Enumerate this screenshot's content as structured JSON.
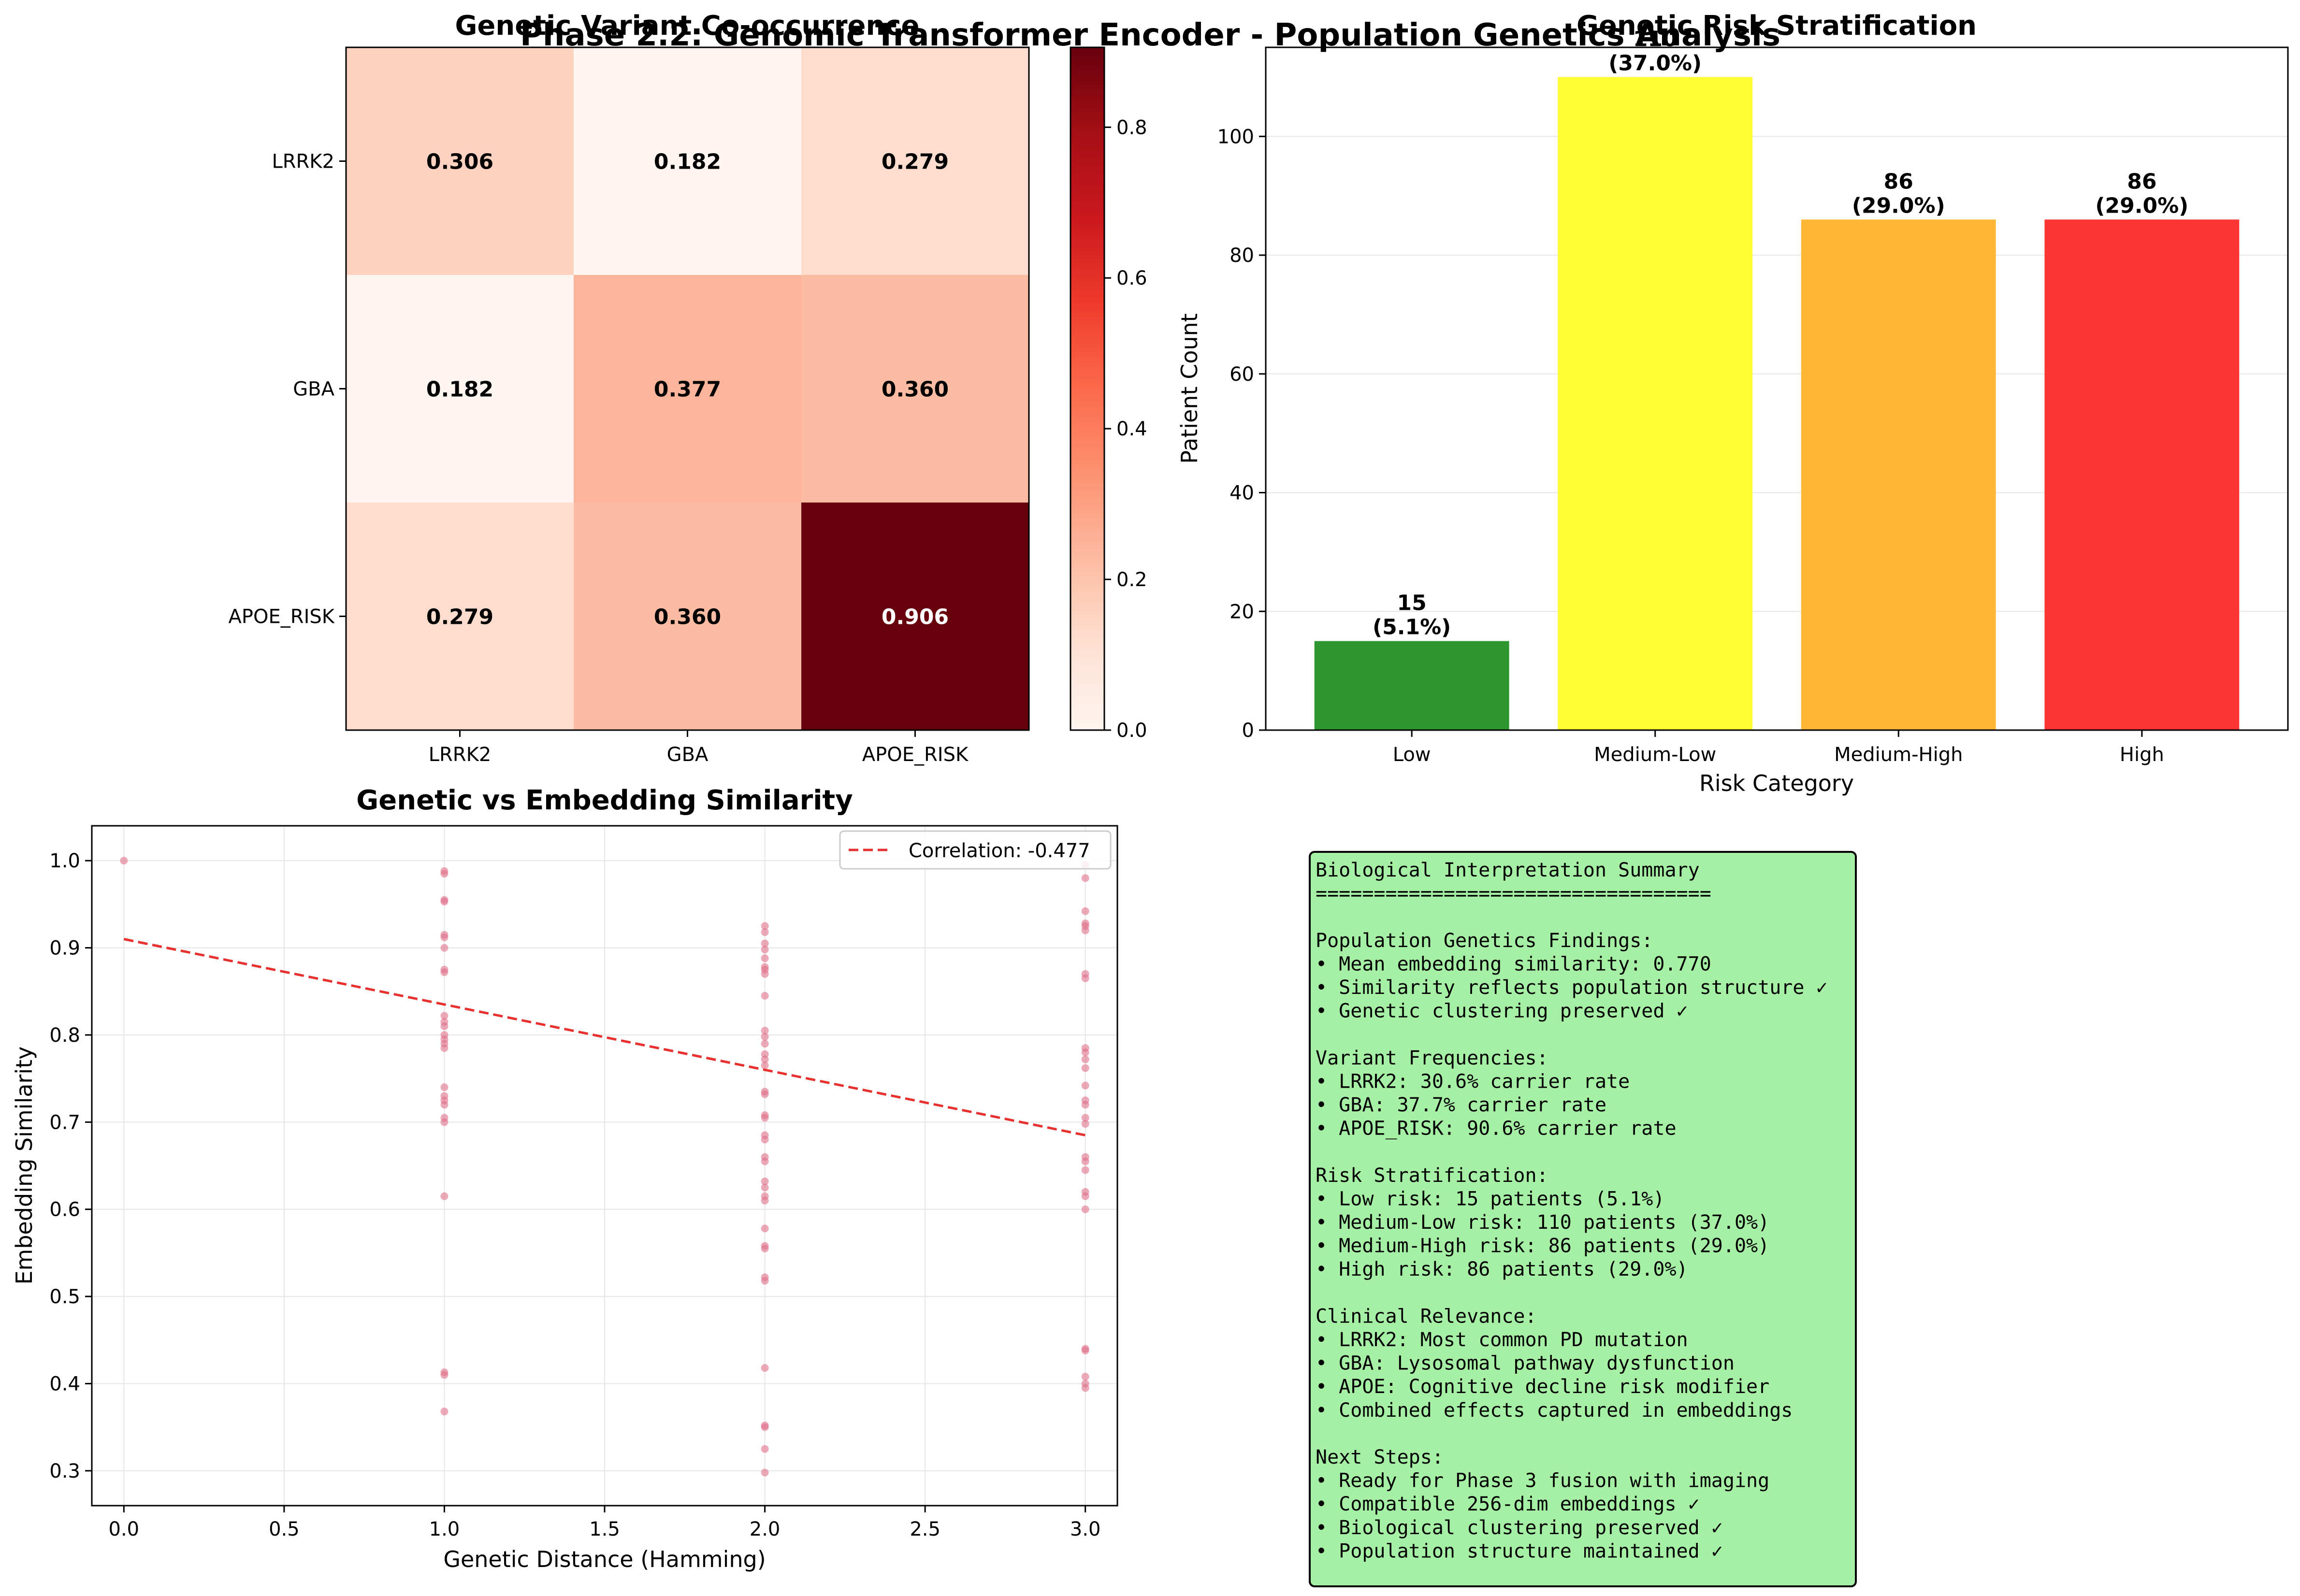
{
  "suptitle": "Phase 2.2: Genomic Transformer Encoder - Population Genetics Analysis",
  "chart_data": [
    {
      "type": "heatmap",
      "title": "Genetic Variant Co-occurrence",
      "xlabel": "",
      "ylabel": "",
      "x_labels": [
        "LRRK2",
        "GBA",
        "APOE_RISK"
      ],
      "y_labels": [
        "LRRK2",
        "GBA",
        "APOE_RISK"
      ],
      "values": [
        [
          0.306,
          0.182,
          0.279
        ],
        [
          0.182,
          0.377,
          0.36
        ],
        [
          0.279,
          0.36,
          0.906
        ]
      ],
      "value_labels": [
        [
          "0.306",
          "0.182",
          "0.279"
        ],
        [
          "0.182",
          "0.377",
          "0.360"
        ],
        [
          "0.279",
          "0.360",
          "0.906"
        ]
      ],
      "colorscale": "Reds",
      "colorbar": {
        "range": [
          0,
          0.9
        ],
        "ticks": [
          "0.0",
          "0.2",
          "0.4",
          "0.6",
          "0.8"
        ],
        "tick_values": [
          0,
          0.2,
          0.4,
          0.6,
          0.8
        ]
      }
    },
    {
      "type": "bar",
      "title": "Genetic Risk Stratification",
      "xlabel": "Risk Category",
      "ylabel": "Patient Count",
      "categories": [
        "Low",
        "Medium-Low",
        "Medium-High",
        "High"
      ],
      "values": [
        15,
        110,
        86,
        86
      ],
      "value_labels": [
        "15",
        "110",
        "86",
        "86"
      ],
      "percent_labels": [
        "(5.1%)",
        "(37.0%)",
        "(29.0%)",
        "(29.0%)"
      ],
      "colors": [
        "#2e962e",
        "#fefe34",
        "#fdb735",
        "#fe3535"
      ],
      "ylim": [
        0,
        115
      ],
      "yticks": [
        0,
        20,
        40,
        60,
        80,
        100
      ],
      "ytick_labels": [
        "0",
        "20",
        "40",
        "60",
        "80",
        "100"
      ],
      "grid": true
    },
    {
      "type": "scatter",
      "title": "Genetic vs Embedding Similarity",
      "xlabel": "Genetic Distance (Hamming)",
      "ylabel": "Embedding Similarity",
      "xlim": [
        -0.1,
        3.1
      ],
      "ylim": [
        0.26,
        1.04
      ],
      "xticks": [
        0,
        0.5,
        1,
        1.5,
        2,
        2.5,
        3
      ],
      "xtick_labels": [
        "0.0",
        "0.5",
        "1.0",
        "1.5",
        "2.0",
        "2.5",
        "3.0"
      ],
      "yticks": [
        0.3,
        0.4,
        0.5,
        0.6,
        0.7,
        0.8,
        0.9,
        1.0
      ],
      "ytick_labels": [
        "0.3",
        "0.4",
        "0.5",
        "0.6",
        "0.7",
        "0.8",
        "0.9",
        "1.0"
      ],
      "grid": true,
      "point_color": "#e07088",
      "points": [
        [
          0,
          1.0
        ],
        [
          1,
          0.988
        ],
        [
          1,
          0.985
        ],
        [
          1,
          0.955
        ],
        [
          1,
          0.953
        ],
        [
          1,
          0.915
        ],
        [
          1,
          0.912
        ],
        [
          1,
          0.9
        ],
        [
          1,
          0.875
        ],
        [
          1,
          0.872
        ],
        [
          1,
          0.822
        ],
        [
          1,
          0.815
        ],
        [
          1,
          0.81
        ],
        [
          1,
          0.8
        ],
        [
          1,
          0.795
        ],
        [
          1,
          0.79
        ],
        [
          1,
          0.785
        ],
        [
          1,
          0.74
        ],
        [
          1,
          0.73
        ],
        [
          1,
          0.725
        ],
        [
          1,
          0.72
        ],
        [
          1,
          0.705
        ],
        [
          1,
          0.7
        ],
        [
          1,
          0.615
        ],
        [
          1,
          0.413
        ],
        [
          1,
          0.41
        ],
        [
          1,
          0.368
        ],
        [
          2,
          0.925
        ],
        [
          2,
          0.918
        ],
        [
          2,
          0.905
        ],
        [
          2,
          0.898
        ],
        [
          2,
          0.888
        ],
        [
          2,
          0.878
        ],
        [
          2,
          0.875
        ],
        [
          2,
          0.87
        ],
        [
          2,
          0.845
        ],
        [
          2,
          0.805
        ],
        [
          2,
          0.798
        ],
        [
          2,
          0.79
        ],
        [
          2,
          0.778
        ],
        [
          2,
          0.772
        ],
        [
          2,
          0.765
        ],
        [
          2,
          0.735
        ],
        [
          2,
          0.732
        ],
        [
          2,
          0.708
        ],
        [
          2,
          0.705
        ],
        [
          2,
          0.685
        ],
        [
          2,
          0.68
        ],
        [
          2,
          0.66
        ],
        [
          2,
          0.655
        ],
        [
          2,
          0.632
        ],
        [
          2,
          0.625
        ],
        [
          2,
          0.615
        ],
        [
          2,
          0.61
        ],
        [
          2,
          0.578
        ],
        [
          2,
          0.558
        ],
        [
          2,
          0.555
        ],
        [
          2,
          0.522
        ],
        [
          2,
          0.518
        ],
        [
          2,
          0.418
        ],
        [
          2,
          0.352
        ],
        [
          2,
          0.35
        ],
        [
          2,
          0.325
        ],
        [
          2,
          0.298
        ],
        [
          3,
          0.995
        ],
        [
          3,
          0.98
        ],
        [
          3,
          0.942
        ],
        [
          3,
          0.928
        ],
        [
          3,
          0.925
        ],
        [
          3,
          0.92
        ],
        [
          3,
          0.87
        ],
        [
          3,
          0.865
        ],
        [
          3,
          0.785
        ],
        [
          3,
          0.78
        ],
        [
          3,
          0.772
        ],
        [
          3,
          0.762
        ],
        [
          3,
          0.742
        ],
        [
          3,
          0.725
        ],
        [
          3,
          0.72
        ],
        [
          3,
          0.705
        ],
        [
          3,
          0.698
        ],
        [
          3,
          0.66
        ],
        [
          3,
          0.655
        ],
        [
          3,
          0.645
        ],
        [
          3,
          0.62
        ],
        [
          3,
          0.615
        ],
        [
          3,
          0.6
        ],
        [
          3,
          0.44
        ],
        [
          3,
          0.438
        ],
        [
          3,
          0.408
        ],
        [
          3,
          0.4
        ],
        [
          3,
          0.395
        ]
      ],
      "trendline": {
        "x": [
          0,
          3
        ],
        "y": [
          0.91,
          0.685
        ],
        "label": "Correlation: -0.477",
        "color": "#e8302f"
      },
      "legend_position": "top-right"
    }
  ],
  "summary_box": {
    "lines": [
      "Biological Interpretation Summary",
      "==================================",
      "",
      "Population Genetics Findings:",
      "• Mean embedding similarity: 0.770",
      "• Similarity reflects population structure ✓",
      "• Genetic clustering preserved ✓",
      "",
      "Variant Frequencies:",
      "• LRRK2: 30.6% carrier rate",
      "• GBA: 37.7% carrier rate",
      "• APOE_RISK: 90.6% carrier rate",
      "",
      "Risk Stratification:",
      "• Low risk: 15 patients (5.1%)",
      "• Medium-Low risk: 110 patients (37.0%)",
      "• Medium-High risk: 86 patients (29.0%)",
      "• High risk: 86 patients (29.0%)",
      "",
      "Clinical Relevance:",
      "• LRRK2: Most common PD mutation",
      "• GBA: Lysosomal pathway dysfunction",
      "• APOE: Cognitive decline risk modifier",
      "• Combined effects captured in embeddings",
      "",
      "Next Steps:",
      "• Ready for Phase 3 fusion with imaging",
      "• Compatible 256-dim embeddings ✓",
      "• Biological clustering preserved ✓",
      "• Population structure maintained ✓"
    ],
    "background": "#a6f0a6"
  }
}
